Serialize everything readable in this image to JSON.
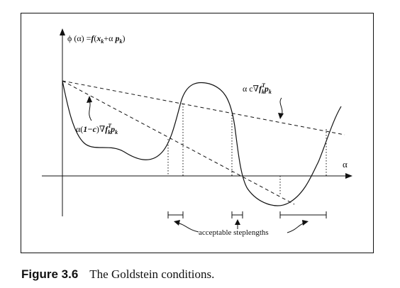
{
  "figure": {
    "y_axis_label": "ϕ (α) =f(x_k+α p_k)",
    "x_axis_label": "α",
    "upper_line_label": "α c∇f_k^T p_k",
    "lower_line_label": "α(1−c)∇f_k^T p_k",
    "interval_label": "acceptable steplengths"
  },
  "caption": {
    "number": "Figure 3.6",
    "text": "The Goldstein conditions."
  }
}
